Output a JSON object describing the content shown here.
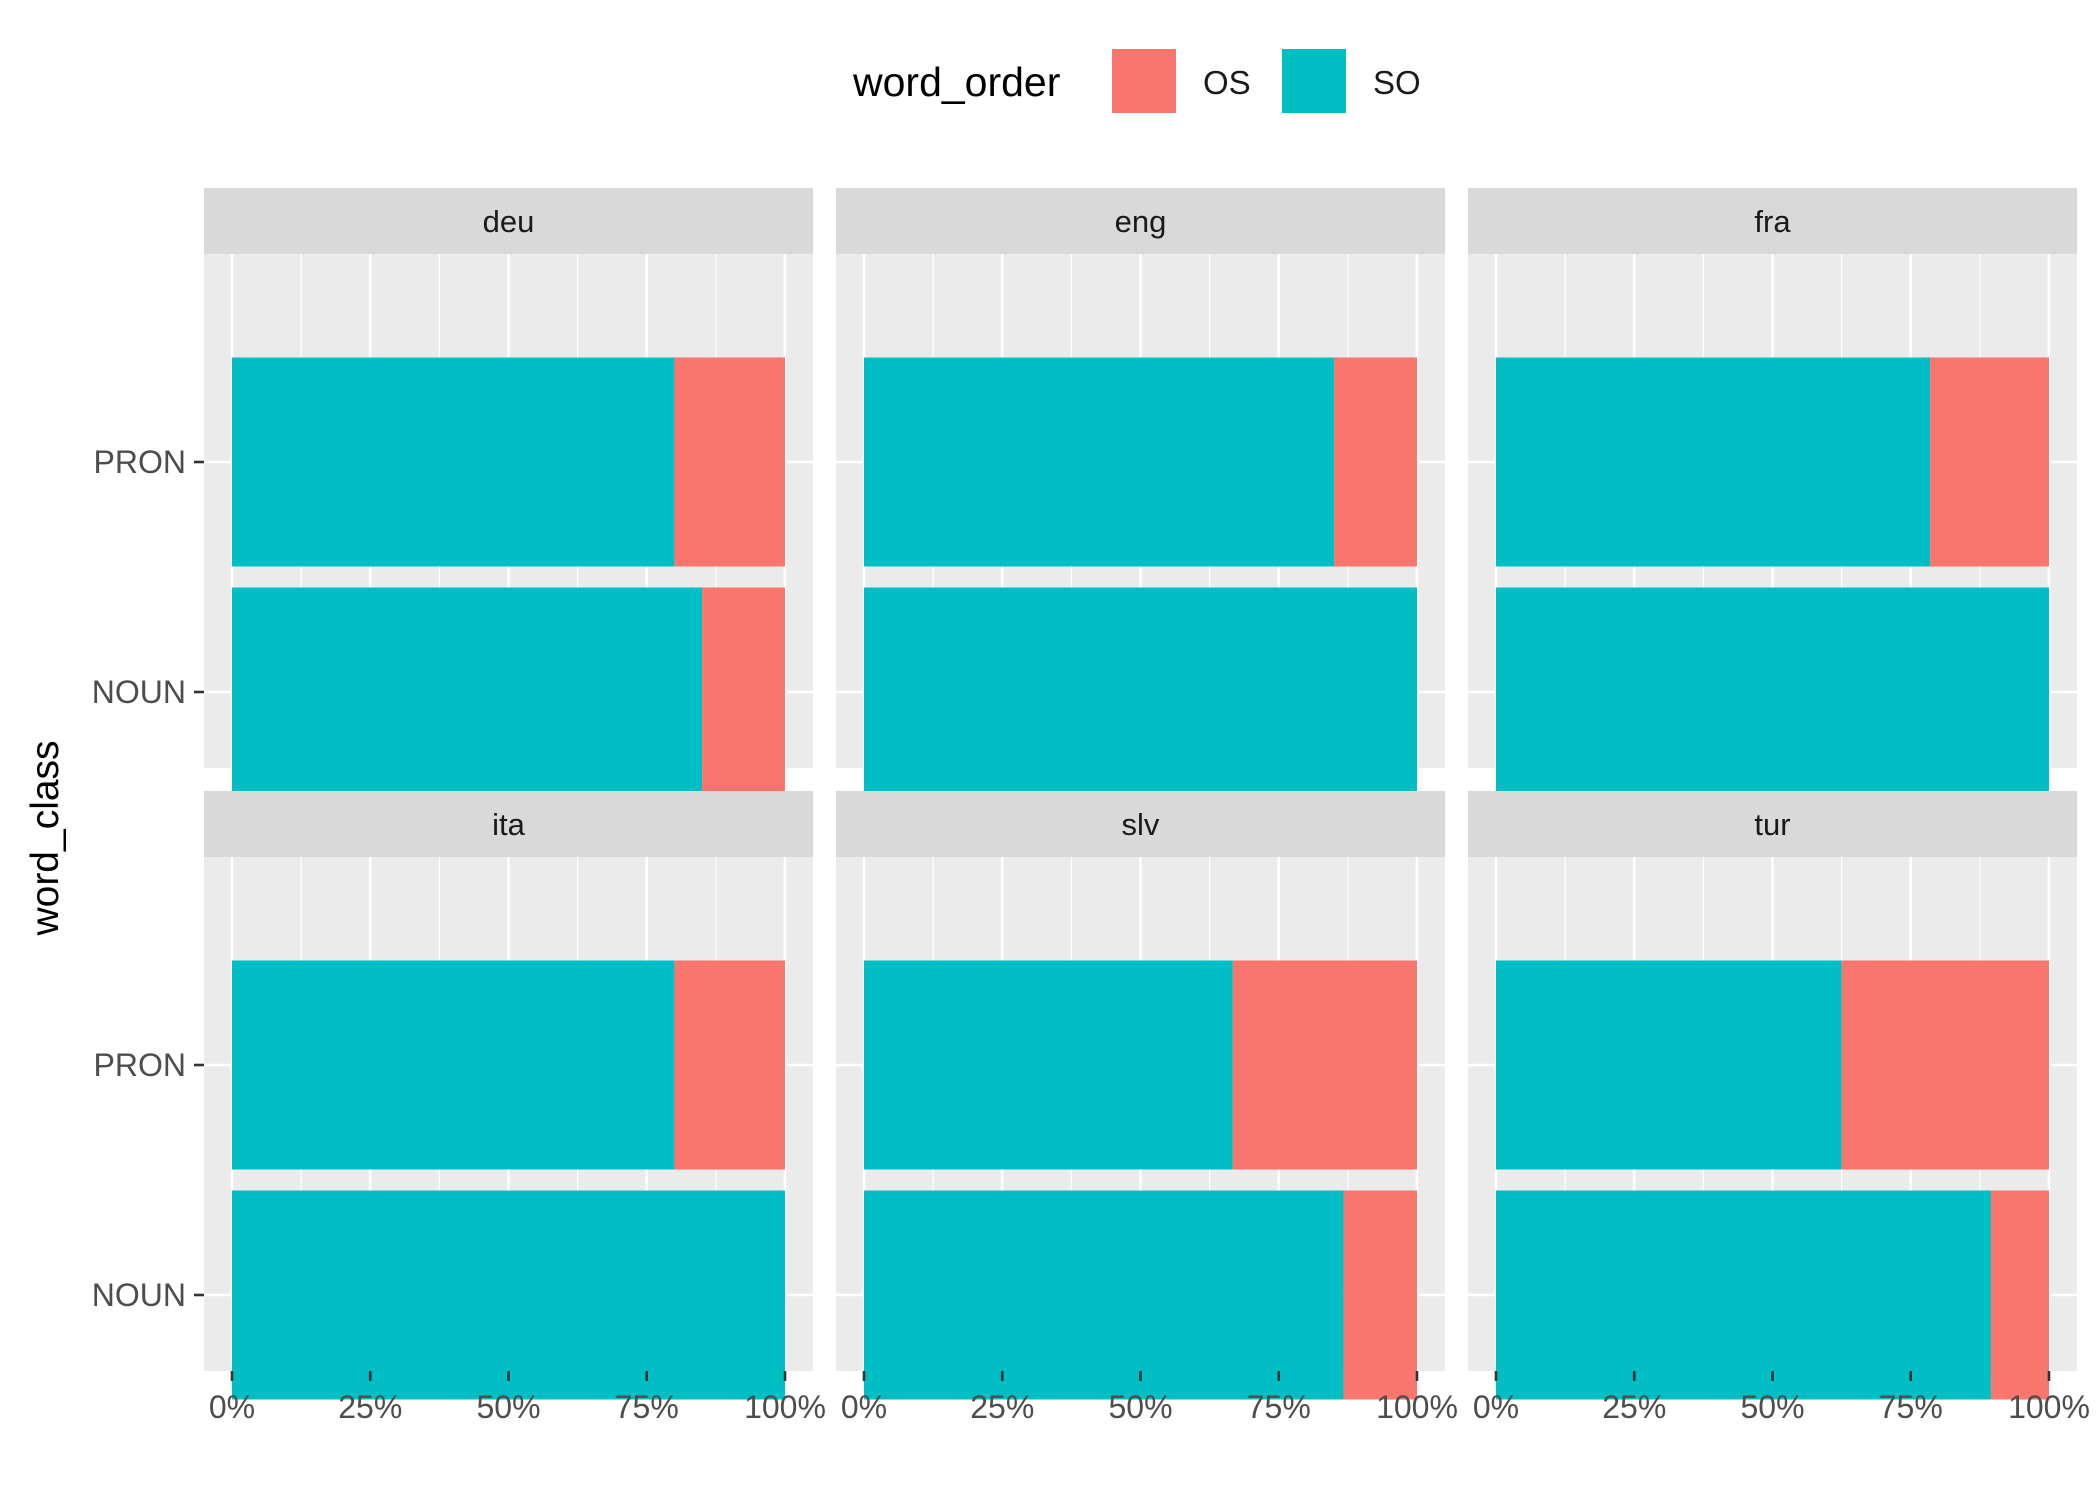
{
  "chart_data": {
    "type": "bar",
    "orientation": "horizontal",
    "stacked": "fill",
    "ylabel": "word_class",
    "xlabel": "",
    "categories": [
      "PRON",
      "NOUN"
    ],
    "x_ticks": [
      "0%",
      "25%",
      "50%",
      "75%",
      "100%"
    ],
    "xlim": [
      0,
      1
    ],
    "grid": true,
    "legend": {
      "title": "word_order",
      "position": "top",
      "entries": [
        {
          "key": "OS",
          "label": "OS",
          "color": "#F8766D"
        },
        {
          "key": "SO",
          "label": "SO",
          "color": "#00BFC4"
        }
      ]
    },
    "facets": [
      {
        "name": "deu",
        "values": {
          "PRON": {
            "SO": 0.8,
            "OS": 0.2
          },
          "NOUN": {
            "SO": 0.85,
            "OS": 0.15
          }
        }
      },
      {
        "name": "eng",
        "values": {
          "PRON": {
            "SO": 0.85,
            "OS": 0.15
          },
          "NOUN": {
            "SO": 1.0,
            "OS": 0.0
          }
        }
      },
      {
        "name": "fra",
        "values": {
          "PRON": {
            "SO": 0.785,
            "OS": 0.215
          },
          "NOUN": {
            "SO": 1.0,
            "OS": 0.0
          }
        }
      },
      {
        "name": "ita",
        "values": {
          "PRON": {
            "SO": 0.8,
            "OS": 0.2
          },
          "NOUN": {
            "SO": 1.0,
            "OS": 0.0
          }
        }
      },
      {
        "name": "slv",
        "values": {
          "PRON": {
            "SO": 0.667,
            "OS": 0.333
          },
          "NOUN": {
            "SO": 0.867,
            "OS": 0.133
          }
        }
      },
      {
        "name": "tur",
        "values": {
          "PRON": {
            "SO": 0.625,
            "OS": 0.375
          },
          "NOUN": {
            "SO": 0.895,
            "OS": 0.105
          }
        }
      }
    ]
  }
}
